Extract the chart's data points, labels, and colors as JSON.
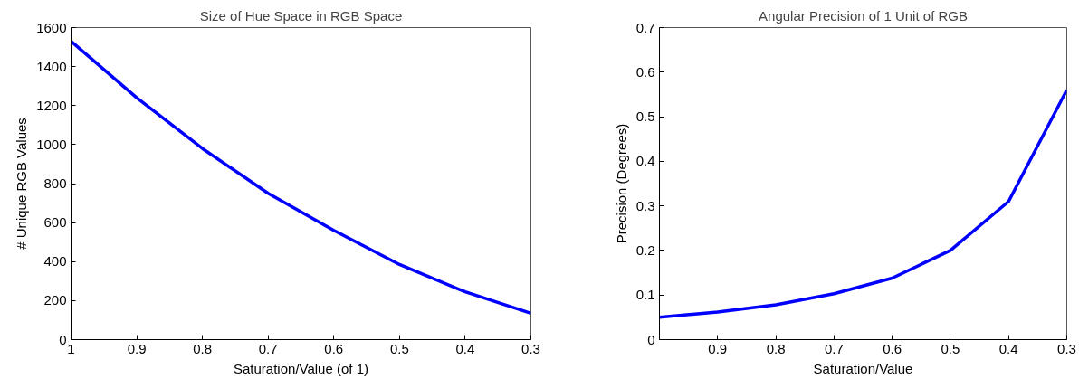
{
  "chart_data": [
    {
      "type": "line",
      "title": "Size of Hue Space in RGB Space",
      "xlabel": "Saturation/Value (of 1)",
      "ylabel": "# Unique RGB Values",
      "x": [
        1,
        0.9,
        0.8,
        0.7,
        0.6,
        0.5,
        0.4,
        0.3
      ],
      "series": [
        {
          "color": "#0000ff",
          "values": [
            1530,
            1240,
            980,
            750,
            560,
            385,
            245,
            135
          ]
        }
      ],
      "xlim": [
        1,
        0.3
      ],
      "xticks": [
        1,
        0.9,
        0.8,
        0.7,
        0.6,
        0.5,
        0.4,
        0.3
      ],
      "ylim": [
        0,
        1600
      ],
      "yticks": [
        0,
        200,
        400,
        600,
        800,
        1000,
        1200,
        1400,
        1600
      ],
      "grid": false
    },
    {
      "type": "line",
      "title": "Angular Precision of 1 Unit of RGB",
      "xlabel": "Saturation/Value",
      "ylabel": "Precision (Degrees)",
      "x": [
        1,
        0.9,
        0.8,
        0.7,
        0.6,
        0.5,
        0.4,
        0.3
      ],
      "series": [
        {
          "color": "#0000ff",
          "values": [
            0.05,
            0.062,
            0.078,
            0.103,
            0.138,
            0.2,
            0.31,
            0.56
          ]
        }
      ],
      "xlim": [
        1,
        0.3
      ],
      "xticks": [
        0.9,
        0.8,
        0.7,
        0.6,
        0.5,
        0.4,
        0.3
      ],
      "ylim": [
        0,
        0.7
      ],
      "yticks": [
        0,
        0.1,
        0.2,
        0.3,
        0.4,
        0.5,
        0.6,
        0.7
      ],
      "grid": false
    }
  ]
}
